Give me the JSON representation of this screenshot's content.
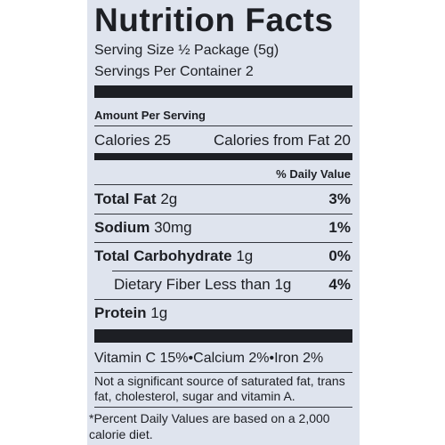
{
  "title": "Nutrition Facts",
  "serving_size": "Serving Size ½ Package (5g)",
  "servings": "Servings Per Container 2",
  "amount_per_serving": "Amount Per Serving",
  "calories": "Calories 25",
  "calories_from_fat": "Calories from Fat 20",
  "daily_value_header": "% Daily Value",
  "rows": [
    {
      "label": "Total Fat",
      "amount": "2g",
      "dv": "3%"
    },
    {
      "label": "Sodium",
      "amount": "30mg",
      "dv": "1%"
    },
    {
      "label": "Total Carbohydrate",
      "amount": "1g",
      "dv": "0%"
    },
    {
      "label": "Dietary Fiber Less than 1g",
      "dv": "4%"
    },
    {
      "label": "Protein",
      "amount": "1g"
    }
  ],
  "vitamins": "Vitamin C 15%•Calcium 2%•Iron 2%",
  "note": "Not a significant source of saturated fat, trans fat, cholesterol, sugar and vitamin A.",
  "footnote": "*Percent Daily Values are based on a 2,000 calorie diet."
}
